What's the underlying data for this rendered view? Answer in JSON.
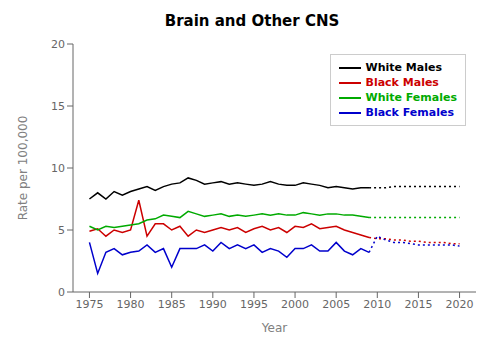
{
  "chart_data": {
    "type": "line",
    "title": "Brain and Other CNS",
    "xlabel": "Year",
    "ylabel": "Rate per 100,000",
    "xlim": [
      1973,
      2022
    ],
    "xticks": [
      1975,
      1980,
      1985,
      1990,
      1995,
      2000,
      2005,
      2010,
      2015,
      2020
    ],
    "ylim": [
      0,
      20
    ],
    "yticks": [
      0,
      5,
      10,
      15,
      20
    ],
    "grid": false,
    "legend": "upper right",
    "series": [
      {
        "name": "White Males",
        "color": "#000000",
        "line_style": "solid",
        "x": [
          1975,
          1976,
          1977,
          1978,
          1979,
          1980,
          1981,
          1982,
          1983,
          1984,
          1985,
          1986,
          1987,
          1988,
          1989,
          1990,
          1991,
          1992,
          1993,
          1994,
          1995,
          1996,
          1997,
          1998,
          1999,
          2000,
          2001,
          2002,
          2003,
          2004,
          2005,
          2006,
          2007,
          2008,
          2009
        ],
        "values": [
          7.5,
          8.0,
          7.5,
          8.1,
          7.8,
          8.1,
          8.3,
          8.5,
          8.2,
          8.5,
          8.7,
          8.8,
          9.2,
          9.0,
          8.7,
          8.8,
          8.9,
          8.7,
          8.8,
          8.7,
          8.6,
          8.7,
          8.9,
          8.7,
          8.6,
          8.6,
          8.8,
          8.7,
          8.6,
          8.4,
          8.5,
          8.4,
          8.3,
          8.4,
          8.4
        ]
      },
      {
        "name": "White Males",
        "color": "#000000",
        "line_style": "dotted",
        "x": [
          2009,
          2010,
          2011,
          2012,
          2013,
          2014,
          2015,
          2016,
          2017,
          2018,
          2019,
          2020
        ],
        "values": [
          8.4,
          8.4,
          8.4,
          8.5,
          8.5,
          8.5,
          8.5,
          8.5,
          8.5,
          8.5,
          8.5,
          8.5
        ]
      },
      {
        "name": "Black Males",
        "color": "#cc0000",
        "line_style": "solid",
        "x": [
          1975,
          1976,
          1977,
          1978,
          1979,
          1980,
          1981,
          1982,
          1983,
          1984,
          1985,
          1986,
          1987,
          1988,
          1989,
          1990,
          1991,
          1992,
          1993,
          1994,
          1995,
          1996,
          1997,
          1998,
          1999,
          2000,
          2001,
          2002,
          2003,
          2004,
          2005,
          2006,
          2007,
          2008,
          2009
        ],
        "values": [
          4.9,
          5.1,
          4.5,
          5.0,
          4.8,
          5.0,
          7.4,
          4.5,
          5.5,
          5.5,
          5.0,
          5.3,
          4.5,
          5.0,
          4.8,
          5.0,
          5.2,
          5.0,
          5.2,
          4.8,
          5.1,
          5.3,
          5.0,
          5.2,
          4.8,
          5.3,
          5.2,
          5.5,
          5.1,
          5.2,
          5.3,
          5.0,
          4.8,
          4.6,
          4.4
        ]
      },
      {
        "name": "Black Males",
        "color": "#cc0000",
        "line_style": "dotted",
        "x": [
          2009,
          2010,
          2011,
          2012,
          2013,
          2014,
          2015,
          2016,
          2017,
          2018,
          2019,
          2020
        ],
        "values": [
          4.4,
          4.3,
          4.3,
          4.2,
          4.2,
          4.1,
          4.1,
          4.0,
          4.0,
          4.0,
          3.9,
          3.9
        ]
      },
      {
        "name": "White Females",
        "color": "#00aa00",
        "line_style": "solid",
        "x": [
          1975,
          1976,
          1977,
          1978,
          1979,
          1980,
          1981,
          1982,
          1983,
          1984,
          1985,
          1986,
          1987,
          1988,
          1989,
          1990,
          1991,
          1992,
          1993,
          1994,
          1995,
          1996,
          1997,
          1998,
          1999,
          2000,
          2001,
          2002,
          2003,
          2004,
          2005,
          2006,
          2007,
          2008,
          2009
        ],
        "values": [
          5.3,
          5.0,
          5.3,
          5.2,
          5.3,
          5.4,
          5.5,
          5.8,
          5.9,
          6.2,
          6.1,
          6.0,
          6.5,
          6.3,
          6.1,
          6.2,
          6.3,
          6.1,
          6.2,
          6.1,
          6.2,
          6.3,
          6.2,
          6.3,
          6.2,
          6.2,
          6.4,
          6.3,
          6.2,
          6.3,
          6.3,
          6.2,
          6.2,
          6.1,
          6.0
        ]
      },
      {
        "name": "White Females",
        "color": "#00aa00",
        "line_style": "dotted",
        "x": [
          2009,
          2010,
          2011,
          2012,
          2013,
          2014,
          2015,
          2016,
          2017,
          2018,
          2019,
          2020
        ],
        "values": [
          6.0,
          6.0,
          6.0,
          6.0,
          6.0,
          6.0,
          6.0,
          6.0,
          6.0,
          6.0,
          6.0,
          6.0
        ]
      },
      {
        "name": "Black Females",
        "color": "#0000cc",
        "line_style": "solid",
        "x": [
          1975,
          1976,
          1977,
          1978,
          1979,
          1980,
          1981,
          1982,
          1983,
          1984,
          1985,
          1986,
          1987,
          1988,
          1989,
          1990,
          1991,
          1992,
          1993,
          1994,
          1995,
          1996,
          1997,
          1998,
          1999,
          2000,
          2001,
          2002,
          2003,
          2004,
          2005,
          2006,
          2007,
          2008,
          2009
        ],
        "values": [
          4.0,
          1.5,
          3.2,
          3.5,
          3.0,
          3.2,
          3.3,
          3.8,
          3.2,
          3.5,
          2.0,
          3.5,
          3.5,
          3.5,
          3.8,
          3.3,
          4.0,
          3.5,
          3.8,
          3.5,
          3.8,
          3.2,
          3.5,
          3.3,
          2.8,
          3.5,
          3.5,
          3.8,
          3.3,
          3.3,
          4.0,
          3.3,
          3.0,
          3.5,
          3.2
        ]
      },
      {
        "name": "Black Females",
        "color": "#0000cc",
        "line_style": "dotted",
        "x": [
          2009,
          2010,
          2011,
          2012,
          2013,
          2014,
          2015,
          2016,
          2017,
          2018,
          2019,
          2020
        ],
        "values": [
          3.2,
          4.5,
          4.2,
          4.0,
          4.0,
          3.9,
          3.8,
          3.8,
          3.8,
          3.8,
          3.8,
          3.7
        ]
      }
    ]
  }
}
